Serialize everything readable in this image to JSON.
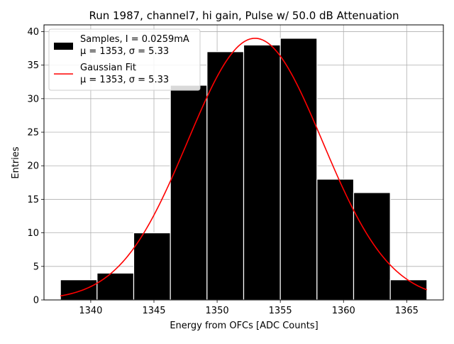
{
  "chart_data": {
    "type": "histogram",
    "title": "Run 1987, channel7, hi gain, Pulse w/ 50.0 dB Attenuation",
    "xlabel": "Energy from OFCs [ADC Counts]",
    "ylabel": "Entries",
    "xlim": [
      1336.3,
      1367.9
    ],
    "ylim": [
      0,
      41
    ],
    "xticks": [
      1340,
      1345,
      1350,
      1355,
      1360,
      1365
    ],
    "yticks": [
      0,
      5,
      10,
      15,
      20,
      25,
      30,
      35,
      40
    ],
    "grid": true,
    "legend_position": "top-left",
    "bins": [
      {
        "x0": 1337.6,
        "x1": 1340.5,
        "count": 3
      },
      {
        "x0": 1340.5,
        "x1": 1343.4,
        "count": 4
      },
      {
        "x0": 1343.4,
        "x1": 1346.3,
        "count": 10
      },
      {
        "x0": 1346.3,
        "x1": 1349.2,
        "count": 32
      },
      {
        "x0": 1349.2,
        "x1": 1352.1,
        "count": 37
      },
      {
        "x0": 1352.1,
        "x1": 1355.0,
        "count": 38
      },
      {
        "x0": 1355.0,
        "x1": 1357.9,
        "count": 39
      },
      {
        "x0": 1357.9,
        "x1": 1360.8,
        "count": 18
      },
      {
        "x0": 1360.8,
        "x1": 1363.7,
        "count": 16
      },
      {
        "x0": 1363.7,
        "x1": 1366.6,
        "count": 3
      }
    ],
    "fit": {
      "type": "gaussian",
      "mu": 1353,
      "sigma": 5.33,
      "amplitude": 39,
      "x_range": [
        1337.6,
        1366.6
      ]
    },
    "series": [
      {
        "name_line1": "Samples, I = 0.0259mA",
        "name_line2": "μ = 1353, σ = 5.33",
        "color": "#000000",
        "kind": "bars"
      },
      {
        "name_line1": "Gaussian Fit",
        "name_line2": "μ = 1353, σ = 5.33",
        "color": "#ff0000",
        "kind": "line"
      }
    ]
  }
}
